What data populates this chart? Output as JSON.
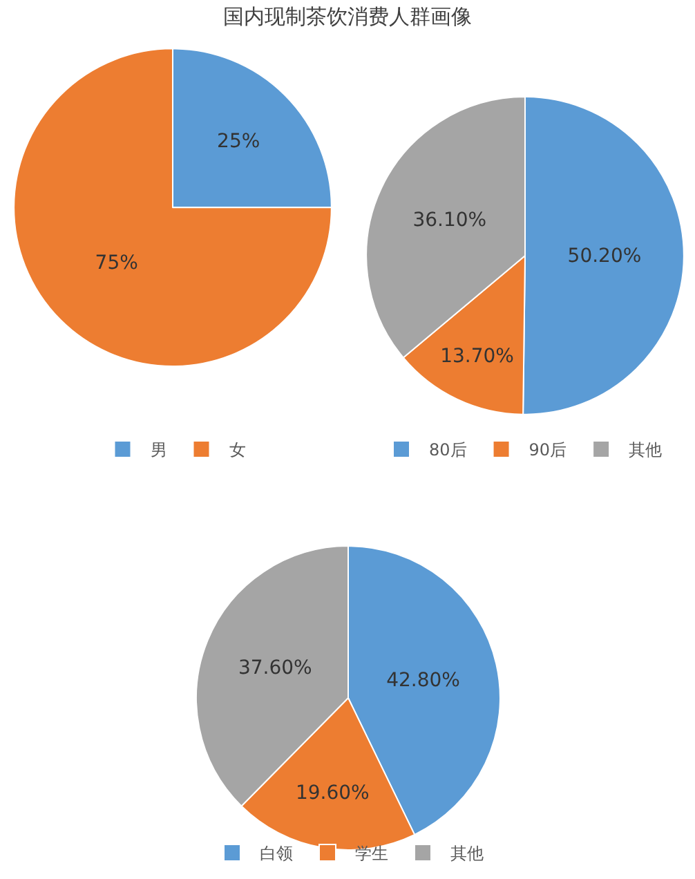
{
  "chart_data": [
    {
      "type": "pie",
      "title": "国内现制茶饮消费人群画像",
      "categories": [
        "男",
        "女"
      ],
      "values": [
        25,
        75
      ],
      "colors": [
        "#5b9bd5",
        "#ed7d31"
      ],
      "value_labels": [
        "25%",
        "75%"
      ],
      "legend": "bottom"
    },
    {
      "type": "pie",
      "categories": [
        "80后",
        "90后",
        "其他"
      ],
      "values": [
        50.2,
        13.7,
        36.1
      ],
      "colors": [
        "#5b9bd5",
        "#ed7d31",
        "#a5a5a5"
      ],
      "value_labels": [
        "50.20%",
        "13.70%",
        "36.10%"
      ],
      "legend": "bottom"
    },
    {
      "type": "pie",
      "categories": [
        "白领",
        "学生",
        "其他"
      ],
      "values": [
        42.8,
        19.6,
        37.6
      ],
      "colors": [
        "#5b9bd5",
        "#ed7d31",
        "#a5a5a5"
      ],
      "value_labels": [
        "42.80%",
        "19.60%",
        "37.60%"
      ],
      "legend": "bottom"
    }
  ]
}
